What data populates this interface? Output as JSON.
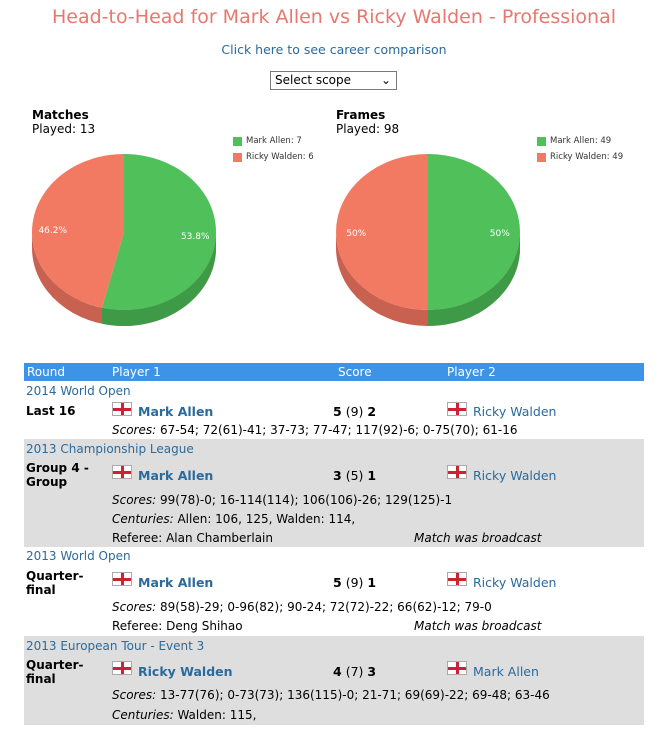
{
  "page": {
    "title": "Head-to-Head for Mark Allen vs Ricky Walden - Professional",
    "career_link": "Click here to see career comparison",
    "scope_select": {
      "selected": "Select scope"
    }
  },
  "colors": {
    "green": "#4fc05a",
    "red": "#f27a62",
    "header": "#3d94e6",
    "link": "#2b6a9c",
    "title": "#e8776e"
  },
  "matches_pie": {
    "heading": "Matches",
    "played_label": "Played: 13",
    "legend": [
      "Mark Allen: 7",
      "Ricky Walden: 6"
    ],
    "labels": [
      "53.8%",
      "46.2%"
    ]
  },
  "frames_pie": {
    "heading": "Frames",
    "played_label": "Played: 98",
    "legend": [
      "Mark Allen: 49",
      "Ricky Walden: 49"
    ],
    "labels": [
      "50%",
      "50%"
    ]
  },
  "chart_data": [
    {
      "type": "pie",
      "title": "Matches",
      "categories": [
        "Mark Allen",
        "Ricky Walden"
      ],
      "values": [
        7,
        6
      ],
      "percent": [
        53.8,
        46.2
      ]
    },
    {
      "type": "pie",
      "title": "Frames",
      "categories": [
        "Mark Allen",
        "Ricky Walden"
      ],
      "values": [
        49,
        49
      ],
      "percent": [
        50,
        50
      ]
    }
  ],
  "table": {
    "headers": [
      "Round",
      "Player 1",
      "Score",
      "Player 2"
    ],
    "matches": [
      {
        "event": "2014 World Open",
        "round": "Last 16",
        "player1": "Mark Allen",
        "score1": "5",
        "bestof": "(9)",
        "score2": "2",
        "player2": "Ricky Walden",
        "scores_label": "Scores:",
        "scores": "67-54; 72(61)-41; 37-73; 77-47; 117(92)-6; 0-75(70); 61-16"
      },
      {
        "event": "2013 Championship League",
        "round": "Group 4 - Group",
        "player1": "Mark Allen",
        "score1": "3",
        "bestof": "(5)",
        "score2": "1",
        "player2": "Ricky Walden",
        "scores_label": "Scores:",
        "scores": "99(78)-0; 16-114(114); 106(106)-26; 129(125)-1",
        "centuries_label": "Centuries:",
        "centuries": "Allen: 106, 125, Walden: 114,",
        "referee": "Referee: Alan Chamberlain",
        "broadcast": "Match was broadcast"
      },
      {
        "event": "2013 World Open",
        "round": "Quarter-final",
        "player1": "Mark Allen",
        "score1": "5",
        "bestof": "(9)",
        "score2": "1",
        "player2": "Ricky Walden",
        "scores_label": "Scores:",
        "scores": "89(58)-29; 0-96(82); 90-24; 72(72)-22; 66(62)-12; 79-0",
        "referee": "Referee: Deng Shihao",
        "broadcast": "Match was broadcast"
      },
      {
        "event": "2013 European Tour - Event 3",
        "round": "Quarter-final",
        "player1": "Ricky Walden",
        "score1": "4",
        "bestof": "(7)",
        "score2": "3",
        "player2": "Mark Allen",
        "scores_label": "Scores:",
        "scores": "13-77(76); 0-73(73); 136(115)-0; 21-71; 69(69)-22; 69-48; 63-46",
        "centuries_label": "Centuries:",
        "centuries": "Walden: 115,"
      }
    ]
  }
}
